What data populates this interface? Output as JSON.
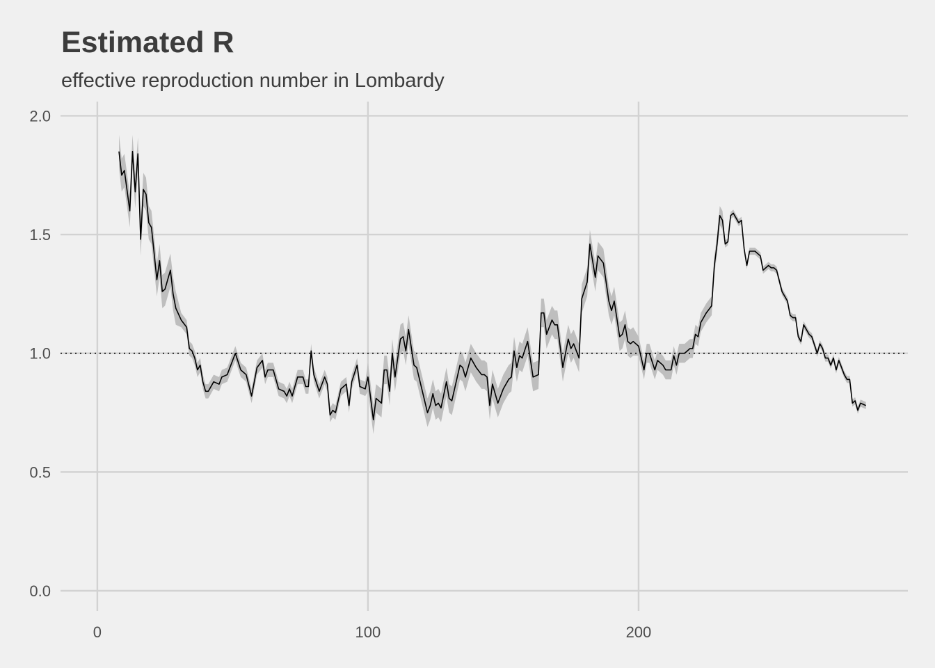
{
  "chart_data": {
    "type": "line",
    "title": "Estimated R",
    "subtitle": "effective reproduction number in Lombardy",
    "xlabel": "",
    "ylabel": "",
    "xlim": [
      -13.6,
      299.5
    ],
    "ylim": [
      -0.085,
      2.06
    ],
    "x_ticks": [
      0,
      100,
      200
    ],
    "x_tick_labels": [
      "0",
      "100",
      "200"
    ],
    "y_ticks": [
      0,
      0.5,
      1,
      1.5,
      2
    ],
    "y_tick_labels": [
      "0.0",
      "0.5",
      "1.0",
      "1.5",
      "2.0"
    ],
    "grid": true,
    "reference_line": {
      "y": 1.0,
      "style": "dotted"
    },
    "colors": {
      "background": "#f0f0f0",
      "line": "#000000",
      "ribbon": "#bebebe",
      "grid": "#d2d2d2",
      "text": "#3c3c3c"
    },
    "series": [
      {
        "x": [
          8,
          9,
          10,
          12,
          13,
          14,
          15,
          16,
          17,
          18,
          19,
          20,
          22,
          23,
          24,
          25,
          27,
          28,
          29,
          31,
          33,
          34,
          35,
          36,
          37,
          38,
          39,
          40,
          41,
          43,
          45,
          46,
          48,
          51,
          53,
          55,
          57,
          59,
          61,
          62,
          63,
          65,
          67,
          69,
          70,
          71,
          72,
          74,
          76,
          77,
          78,
          79,
          80,
          82,
          84,
          85,
          86,
          87,
          88,
          90,
          92,
          93,
          94,
          96,
          97,
          99,
          100,
          102,
          103,
          105,
          106,
          107,
          108,
          109,
          110,
          112,
          113,
          114,
          115,
          117,
          118,
          122,
          123,
          124,
          125,
          126,
          127,
          129,
          130,
          131,
          133,
          134,
          135,
          136,
          138,
          140,
          142,
          143,
          144,
          145,
          146,
          148,
          150,
          152,
          153,
          154,
          155,
          156,
          157,
          159,
          161,
          163,
          164,
          165,
          166,
          168,
          169,
          170,
          172,
          174,
          175,
          176,
          178,
          179,
          181,
          182,
          184,
          185,
          187,
          189,
          190,
          191,
          193,
          194,
          195,
          196,
          197,
          198,
          200,
          202,
          203,
          204,
          206,
          207,
          209,
          210,
          212,
          213,
          214,
          215,
          217,
          219,
          220,
          221,
          222,
          223,
          225,
          227,
          228,
          229,
          230,
          231,
          232,
          233,
          234,
          235,
          237,
          238,
          239,
          240,
          241,
          242,
          243,
          245,
          246,
          248,
          249,
          250,
          251,
          253,
          255,
          256,
          257,
          258,
          259,
          260,
          261,
          263,
          264,
          266,
          267,
          268,
          269,
          270,
          271,
          272,
          273,
          274,
          276,
          277,
          278,
          279,
          280,
          281,
          282,
          284
        ],
        "y": [
          1.85,
          1.75,
          1.77,
          1.6,
          1.85,
          1.68,
          1.84,
          1.48,
          1.69,
          1.67,
          1.55,
          1.53,
          1.31,
          1.39,
          1.26,
          1.27,
          1.35,
          1.25,
          1.19,
          1.14,
          1.11,
          1.02,
          1.01,
          0.98,
          0.93,
          0.95,
          0.88,
          0.84,
          0.84,
          0.88,
          0.87,
          0.9,
          0.91,
          1.0,
          0.93,
          0.91,
          0.82,
          0.94,
          0.97,
          0.9,
          0.93,
          0.93,
          0.85,
          0.84,
          0.82,
          0.85,
          0.82,
          0.9,
          0.9,
          0.86,
          0.86,
          1.01,
          0.91,
          0.84,
          0.9,
          0.87,
          0.74,
          0.76,
          0.75,
          0.85,
          0.87,
          0.78,
          0.88,
          0.95,
          0.86,
          0.85,
          0.9,
          0.72,
          0.81,
          0.79,
          0.93,
          0.93,
          0.84,
          1.0,
          0.9,
          1.06,
          1.07,
          1.01,
          1.1,
          0.95,
          0.94,
          0.75,
          0.78,
          0.83,
          0.78,
          0.79,
          0.77,
          0.88,
          0.81,
          0.8,
          0.9,
          0.95,
          0.94,
          0.9,
          0.98,
          0.94,
          0.91,
          0.91,
          0.9,
          0.78,
          0.87,
          0.79,
          0.85,
          0.89,
          0.9,
          1.01,
          0.94,
          0.99,
          0.98,
          1.05,
          0.9,
          0.91,
          1.17,
          1.17,
          1.08,
          1.14,
          1.12,
          1.12,
          0.94,
          1.06,
          1.02,
          1.04,
          0.98,
          1.23,
          1.3,
          1.46,
          1.32,
          1.41,
          1.38,
          1.22,
          1.18,
          1.22,
          1.07,
          1.08,
          1.12,
          1.05,
          1.04,
          1.05,
          1.03,
          0.93,
          1.0,
          1.0,
          0.93,
          0.97,
          0.95,
          0.93,
          0.93,
          0.99,
          0.95,
          1.0,
          1.0,
          1.02,
          1.02,
          1.08,
          1.07,
          1.13,
          1.17,
          1.2,
          1.37,
          1.46,
          1.58,
          1.56,
          1.46,
          1.47,
          1.58,
          1.59,
          1.55,
          1.56,
          1.44,
          1.37,
          1.43,
          1.43,
          1.43,
          1.41,
          1.35,
          1.37,
          1.36,
          1.36,
          1.35,
          1.26,
          1.22,
          1.16,
          1.15,
          1.15,
          1.07,
          1.05,
          1.12,
          1.08,
          1.07,
          1.0,
          1.04,
          1.02,
          0.98,
          0.98,
          0.95,
          0.98,
          0.93,
          0.97,
          0.91,
          0.89,
          0.89,
          0.79,
          0.8,
          0.76,
          0.79,
          0.78
        ]
      }
    ],
    "ribbon_halfwidth": [
      {
        "from": 0,
        "to": 30,
        "value": 0.07
      },
      {
        "from": 30,
        "to": 100,
        "value": 0.03
      },
      {
        "from": 100,
        "to": 200,
        "value": 0.06
      },
      {
        "from": 200,
        "to": 232,
        "value": 0.04
      },
      {
        "from": 232,
        "to": 300,
        "value": 0.015
      }
    ]
  }
}
